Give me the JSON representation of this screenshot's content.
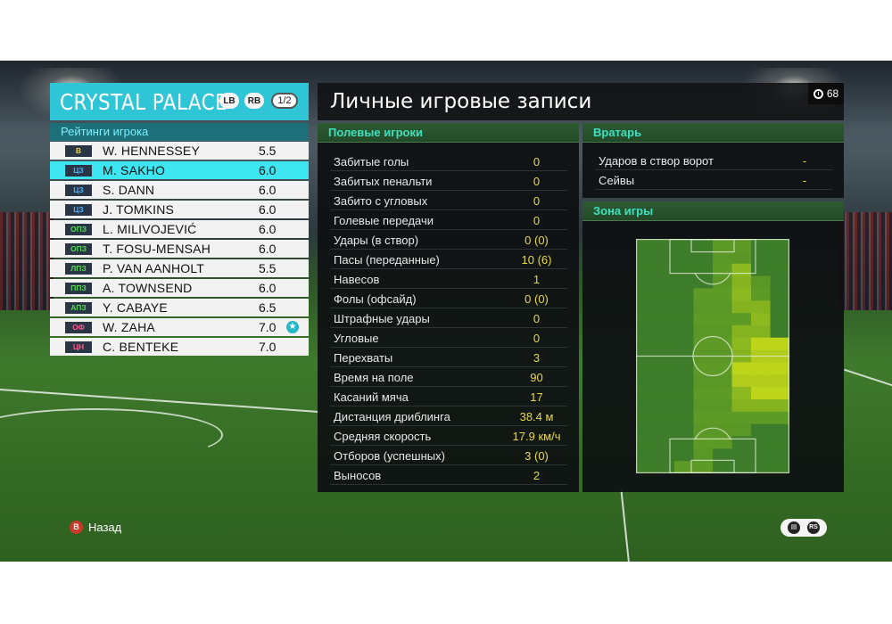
{
  "team": {
    "name": "CRYSTAL PALACE",
    "lb_label": "LB",
    "rb_label": "RB",
    "page_indicator": "1/2",
    "ratings_header": "Рейтинги игрока"
  },
  "players": [
    {
      "pos": "В",
      "pos_color": "#f2d23a",
      "name": "W. HENNESSEY",
      "rating": "5.5",
      "selected": false,
      "star": false
    },
    {
      "pos": "ЦЗ",
      "pos_color": "#4ab0ff",
      "name": "M. SAKHO",
      "rating": "6.0",
      "selected": true,
      "star": false
    },
    {
      "pos": "ЦЗ",
      "pos_color": "#4ab0ff",
      "name": "S. DANN",
      "rating": "6.0",
      "selected": false,
      "star": false
    },
    {
      "pos": "ЦЗ",
      "pos_color": "#4ab0ff",
      "name": "J. TOMKINS",
      "rating": "6.0",
      "selected": false,
      "star": false
    },
    {
      "pos": "ОПЗ",
      "pos_color": "#5ad65a",
      "name": "L. MILIVOJEVIĆ",
      "rating": "6.0",
      "selected": false,
      "star": false
    },
    {
      "pos": "ОПЗ",
      "pos_color": "#5ad65a",
      "name": "T. FOSU-MENSAH",
      "rating": "6.0",
      "selected": false,
      "star": false
    },
    {
      "pos": "ЛПЗ",
      "pos_color": "#5ad65a",
      "name": "P. VAN AANHOLT",
      "rating": "5.5",
      "selected": false,
      "star": false
    },
    {
      "pos": "ППЗ",
      "pos_color": "#5ad65a",
      "name": "A. TOWNSEND",
      "rating": "6.0",
      "selected": false,
      "star": false
    },
    {
      "pos": "АПЗ",
      "pos_color": "#5ad65a",
      "name": "Y. CABAYE",
      "rating": "6.5",
      "selected": false,
      "star": false
    },
    {
      "pos": "ОФ",
      "pos_color": "#ff5a8a",
      "name": "W. ZAHA",
      "rating": "7.0",
      "selected": false,
      "star": true
    },
    {
      "pos": "ЦН",
      "pos_color": "#ff5a8a",
      "name": "C. BENTEKE",
      "rating": "7.0",
      "selected": false,
      "star": false
    }
  ],
  "records": {
    "title": "Личные игровые записи",
    "timer": "68",
    "field_header": "Полевые игроки",
    "stats": [
      {
        "label": "Забитые голы",
        "value": "0"
      },
      {
        "label": "Забитых пенальти",
        "value": "0"
      },
      {
        "label": "Забито с угловых",
        "value": "0"
      },
      {
        "label": "Голевые передачи",
        "value": "0"
      },
      {
        "label": "Удары (в створ)",
        "value": "0 (0)"
      },
      {
        "label": "Пасы (переданные)",
        "value": "10 (6)"
      },
      {
        "label": "Навесов",
        "value": "1"
      },
      {
        "label": "Фолы (офсайд)",
        "value": "0 (0)"
      },
      {
        "label": "Штрафные удары",
        "value": "0"
      },
      {
        "label": "Угловые",
        "value": "0"
      },
      {
        "label": "Перехваты",
        "value": "3"
      },
      {
        "label": "Время на поле",
        "value": "90"
      },
      {
        "label": "Касаний мяча",
        "value": "17"
      },
      {
        "label": "Дистанция дриблинга",
        "value": "38.4 м"
      },
      {
        "label": "Средняя скорость",
        "value": "17.9 км/ч"
      },
      {
        "label": "Отборов (успешных)",
        "value": "3 (0)"
      },
      {
        "label": "Выносов",
        "value": "2"
      }
    ],
    "gk_header": "Вратарь",
    "gk_stats": [
      {
        "label": "Ударов в створ ворот",
        "value": "-"
      },
      {
        "label": "Сейвы",
        "value": "-"
      }
    ],
    "zone_header": "Зона игры",
    "heatmap_levels": [
      [
        0,
        0,
        0,
        0,
        1,
        1,
        0,
        0
      ],
      [
        0,
        0,
        0,
        0,
        1,
        1,
        0,
        0
      ],
      [
        0,
        0,
        0,
        0,
        1,
        2,
        0,
        0
      ],
      [
        0,
        0,
        0,
        0,
        1,
        2,
        1,
        0
      ],
      [
        0,
        0,
        0,
        1,
        1,
        2,
        1,
        0
      ],
      [
        0,
        0,
        0,
        1,
        1,
        2,
        2,
        0
      ],
      [
        0,
        0,
        0,
        1,
        1,
        1,
        2,
        0
      ],
      [
        0,
        0,
        0,
        1,
        1,
        2,
        2,
        0
      ],
      [
        0,
        0,
        0,
        1,
        1,
        2,
        3,
        3
      ],
      [
        0,
        0,
        0,
        1,
        1,
        2,
        3,
        3
      ],
      [
        0,
        0,
        0,
        1,
        1,
        3,
        3,
        3
      ],
      [
        0,
        0,
        0,
        1,
        1,
        3,
        3,
        3
      ],
      [
        0,
        0,
        0,
        1,
        1,
        2,
        3,
        3
      ],
      [
        0,
        0,
        0,
        1,
        1,
        2,
        2,
        2
      ],
      [
        0,
        0,
        0,
        1,
        1,
        1,
        1,
        1
      ],
      [
        0,
        0,
        0,
        1,
        1,
        1,
        0,
        0
      ],
      [
        0,
        0,
        0,
        1,
        1,
        0,
        0,
        0
      ],
      [
        0,
        0,
        0,
        1,
        0,
        0,
        0,
        0
      ],
      [
        0,
        0,
        1,
        1,
        0,
        0,
        0,
        0
      ]
    ]
  },
  "footer": {
    "back_button_glyph": "B",
    "back_label": "Назад",
    "right_icons": [
      "chat-icon",
      "rs-stick-icon"
    ]
  }
}
